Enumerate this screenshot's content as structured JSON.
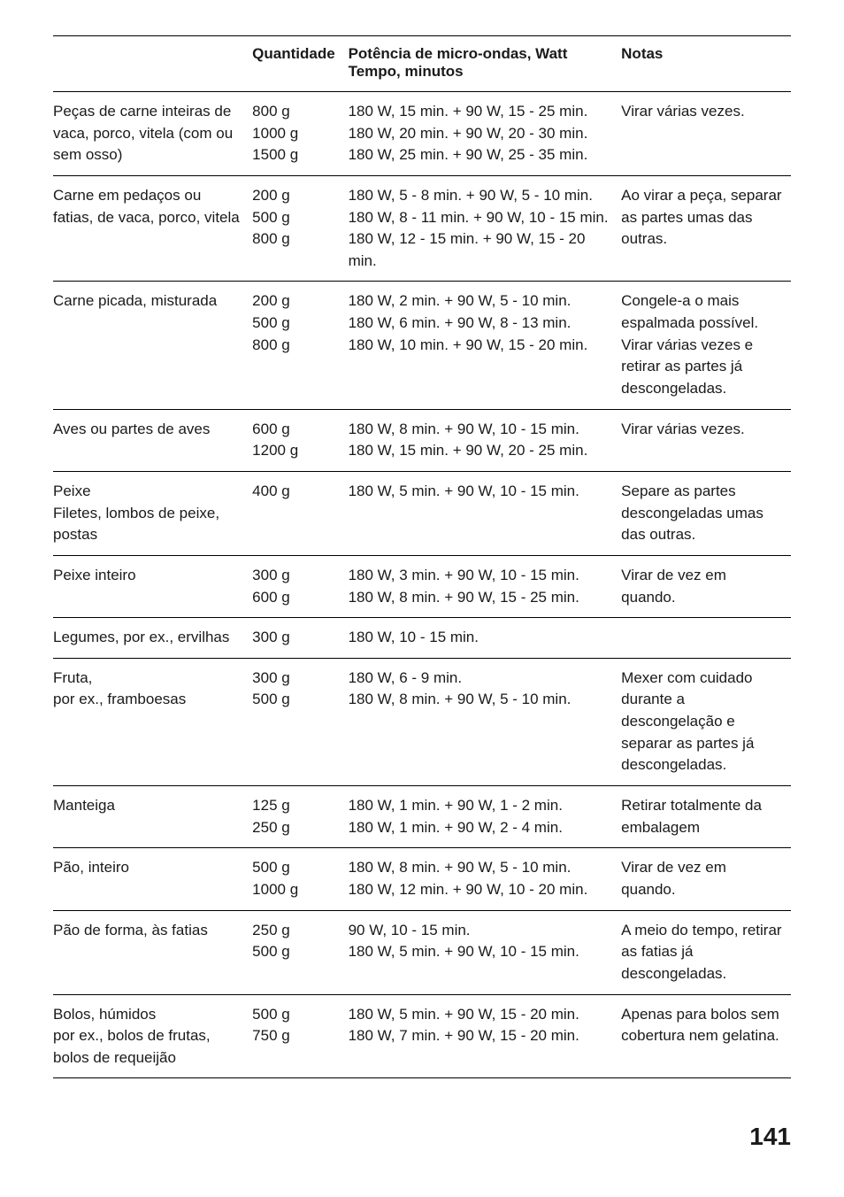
{
  "headers": {
    "col1": "",
    "col2": "Quantidade",
    "col3_line1": "Potência de micro-ondas, Watt",
    "col3_line2": "Tempo, minutos",
    "col4": "Notas"
  },
  "rows": [
    {
      "item": "Peças de carne inteiras de vaca, porco, vitela (com ou sem osso)",
      "qty": "800 g\n1000 g\n1500 g",
      "pwr": "180 W, 15 min. + 90 W, 15 - 25 min.\n180 W, 20 min. + 90 W, 20 - 30 min.\n180 W, 25 min. + 90 W, 25 - 35 min.",
      "note": "Virar várias vezes."
    },
    {
      "item": "Carne em pedaços ou fatias, de vaca, porco, vitela",
      "qty": "200 g\n500 g\n800 g",
      "pwr": "180 W, 5 - 8 min. + 90 W, 5 - 10 min.\n180 W, 8 - 11 min. + 90 W, 10 - 15 min.\n180 W, 12 - 15 min. + 90 W, 15 - 20 min.",
      "note": "Ao virar a peça, separar as partes umas das outras."
    },
    {
      "item": "Carne picada, misturada",
      "qty": "200 g\n500 g\n800 g",
      "pwr": "180 W, 2 min. + 90 W, 5 - 10 min.\n180 W, 6 min. + 90 W, 8 - 13 min.\n180 W, 10 min. + 90 W, 15 - 20 min.",
      "note": "Congele-a o mais espalmada possível. Virar várias vezes e retirar as partes já descongeladas."
    },
    {
      "item": "Aves ou partes de aves",
      "qty": "600 g\n1200 g",
      "pwr": "180 W, 8 min. + 90 W, 10 - 15 min.\n180 W, 15 min. + 90 W, 20 - 25 min.",
      "note": "Virar várias vezes."
    },
    {
      "item": "Peixe\nFiletes, lombos de peixe, postas",
      "qty": "400 g",
      "pwr": "180 W, 5 min. + 90 W, 10 - 15 min.",
      "note": "Separe as partes descongeladas umas das outras."
    },
    {
      "item": "Peixe inteiro",
      "qty": "300 g\n600 g",
      "pwr": "180 W, 3 min. + 90 W, 10 - 15 min.\n180 W, 8 min. + 90 W, 15 - 25 min.",
      "note": "Virar de vez em quando."
    },
    {
      "item": "Legumes, por ex., ervilhas",
      "qty": "300 g",
      "pwr": "180 W, 10 - 15 min.",
      "note": ""
    },
    {
      "item": "Fruta,\npor ex., framboesas",
      "qty": "300 g\n500 g",
      "pwr": "180 W, 6 - 9 min.\n180 W, 8 min. + 90 W, 5 - 10 min.",
      "note": "Mexer com cuidado durante a descongelação e separar as partes já descongeladas."
    },
    {
      "item": "Manteiga",
      "qty": "125 g\n250 g",
      "pwr": "180 W, 1 min. + 90 W, 1 - 2 min.\n180 W, 1 min. + 90 W, 2 - 4 min.",
      "note": "Retirar totalmente da embalagem"
    },
    {
      "item": "Pão, inteiro",
      "qty": "500 g\n1000 g",
      "pwr": "180 W, 8 min. + 90 W, 5 - 10 min.\n180 W, 12 min. + 90 W, 10 - 20 min.",
      "note": "Virar de vez em quando."
    },
    {
      "item": "Pão de forma, às fatias",
      "qty": "250 g\n500 g",
      "pwr": "90 W, 10 - 15 min.\n180 W, 5 min. + 90 W, 10 - 15 min.",
      "note": "A meio do tempo, retirar as fatias já descongeladas."
    },
    {
      "item": "Bolos, húmidos\npor ex., bolos de frutas, bolos de requeijão",
      "qty": "500 g\n750 g",
      "pwr": "180 W, 5 min. + 90 W, 15 - 20 min.\n180 W, 7 min. + 90 W, 15 - 20 min.",
      "note": "Apenas para bolos sem cobertura nem gelatina."
    }
  ],
  "page_number": "141"
}
